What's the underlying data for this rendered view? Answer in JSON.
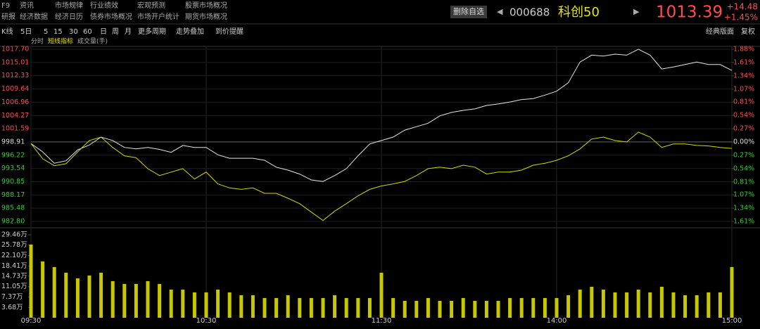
{
  "header": {
    "menu": [
      [
        "F9",
        "资讯",
        "市场规律",
        "行业绩效",
        "宏观预测",
        "股票市场概况"
      ],
      [
        "研报",
        "经济数据",
        "经济日历",
        "债券市场概况",
        "市场开户统计",
        "期货市场概况"
      ]
    ],
    "button": "删除自选",
    "code": "000688",
    "name": "科创50",
    "price": "1013.39",
    "change": "+14.48",
    "change_pct": "+1.45%"
  },
  "toolbar": {
    "left": [
      "K线",
      "5日",
      "5",
      "15",
      "30",
      "60",
      "日",
      "周",
      "月",
      "更多周期",
      "走势叠加",
      "到价提醒"
    ],
    "right": [
      "经典版面",
      "复权"
    ],
    "sub": [
      "分时",
      "短线指标",
      "成交量(手)"
    ]
  },
  "chart_data": {
    "type": "line",
    "x": [
      0,
      4,
      8,
      12,
      16,
      20,
      24,
      28,
      32,
      36,
      40,
      44,
      48,
      52,
      56,
      60,
      64,
      68,
      72,
      76,
      80,
      84,
      88,
      92,
      96,
      100,
      104,
      108,
      112,
      116,
      120,
      124,
      128,
      132,
      136,
      140,
      144,
      148,
      152,
      156,
      160,
      164,
      168,
      172,
      176,
      180,
      184,
      188,
      192,
      196,
      200,
      204,
      208,
      212,
      216,
      220,
      224,
      228,
      232,
      236,
      240
    ],
    "xlim": [
      0,
      240
    ],
    "xticks": [
      {
        "value": 0,
        "label": "09:30"
      },
      {
        "value": 60,
        "label": "10:30"
      },
      {
        "value": 120,
        "label": "11:30"
      },
      {
        "value": 180,
        "label": "14:00"
      },
      {
        "value": 240,
        "label": "15:00"
      }
    ],
    "series": [
      {
        "color": "#e6e6e6",
        "values": [
          998.6,
          996.9,
          994.6,
          995.1,
          997.3,
          998.3,
          999.9,
          999.2,
          997.8,
          997.5,
          997.8,
          997.4,
          996.8,
          998.2,
          997.8,
          997.8,
          996.3,
          995.6,
          995.6,
          995.6,
          995.2,
          993.8,
          993.2,
          992.4,
          991.2,
          990.9,
          992.1,
          993.5,
          996.1,
          998.5,
          999.2,
          999.9,
          1001.3,
          1002.0,
          1002.7,
          1004.2,
          1004.9,
          1005.3,
          1005.6,
          1006.3,
          1006.6,
          1007.0,
          1007.5,
          1007.7,
          1008.4,
          1009.2,
          1010.9,
          1015.1,
          1016.5,
          1016.3,
          1016.7,
          1016.5,
          1017.7,
          1016.5,
          1013.7,
          1014.1,
          1014.6,
          1015.1,
          1014.6,
          1014.6,
          1013.4
        ]
      },
      {
        "color": "#d8d800",
        "values": [
          998.6,
          995.5,
          994.1,
          994.5,
          996.9,
          999.2,
          999.9,
          997.8,
          996.1,
          995.7,
          993.5,
          992.1,
          992.8,
          993.5,
          991.4,
          992.8,
          990.4,
          989.6,
          989.3,
          989.6,
          988.5,
          988.5,
          987.5,
          986.4,
          984.7,
          983.0,
          984.9,
          986.4,
          988.0,
          989.3,
          990.0,
          990.4,
          990.9,
          992.1,
          993.5,
          993.8,
          993.5,
          994.2,
          993.8,
          992.4,
          992.8,
          992.8,
          993.2,
          994.2,
          994.6,
          995.2,
          996.1,
          997.5,
          999.5,
          999.9,
          999.2,
          998.9,
          1000.9,
          999.9,
          997.8,
          998.5,
          998.5,
          998.2,
          998.1,
          997.8,
          997.6
        ]
      }
    ],
    "ylim": [
      982.8,
      1017.7
    ],
    "yticks": [
      {
        "value": 1017.7,
        "label": "1017.70"
      },
      {
        "value": 1015.01,
        "label": "1015.01"
      },
      {
        "value": 1012.33,
        "label": "1012.33"
      },
      {
        "value": 1009.64,
        "label": "1009.64"
      },
      {
        "value": 1006.96,
        "label": "1006.96"
      },
      {
        "value": 1004.27,
        "label": "1004.27"
      },
      {
        "value": 1001.59,
        "label": "1001.59"
      },
      {
        "value": 998.91,
        "label": "998.91"
      },
      {
        "value": 996.22,
        "label": "996.22"
      },
      {
        "value": 993.54,
        "label": "993.54"
      },
      {
        "value": 990.85,
        "label": "990.85"
      },
      {
        "value": 988.17,
        "label": "988.17"
      },
      {
        "value": 985.48,
        "label": "985.48"
      },
      {
        "value": 982.8,
        "label": "982.80"
      }
    ],
    "y2lim": [
      -1.61,
      1.88
    ],
    "y2ticks": [
      {
        "value": 1.88,
        "label": "1.88%"
      },
      {
        "value": 1.61,
        "label": "1.61%"
      },
      {
        "value": 1.34,
        "label": "1.34%"
      },
      {
        "value": 1.07,
        "label": "1.07%"
      },
      {
        "value": 0.81,
        "label": "0.81%"
      },
      {
        "value": 0.54,
        "label": "0.54%"
      },
      {
        "value": 0.27,
        "label": "0.27%"
      },
      {
        "value": 0,
        "label": "0.00%"
      },
      {
        "value": -0.27,
        "label": "0.27%"
      },
      {
        "value": -0.54,
        "label": "0.54%"
      },
      {
        "value": -0.81,
        "label": "0.81%"
      },
      {
        "value": -1.07,
        "label": "1.07%"
      },
      {
        "value": -1.34,
        "label": "1.34%"
      },
      {
        "value": -1.61,
        "label": "1.61%"
      }
    ],
    "up_color": "#ff4d4d",
    "down_color": "#33cc33",
    "volume": {
      "color": "#c8c800",
      "values": [
        26,
        20,
        18,
        16,
        14,
        15,
        16,
        13,
        12,
        12,
        13,
        12,
        10,
        10,
        9,
        9,
        10,
        9,
        8,
        8,
        7,
        7,
        8,
        7,
        7,
        7,
        8,
        7,
        7,
        7,
        16,
        7,
        6,
        6,
        7,
        6,
        6,
        7,
        6,
        6,
        6,
        7,
        7,
        7,
        7,
        7,
        8,
        10,
        11,
        10,
        9,
        9,
        10,
        9,
        11,
        9,
        8,
        8,
        9,
        9,
        18
      ],
      "ylim": [
        0,
        29.46
      ],
      "yticks": [
        {
          "value": 29.46,
          "label": "29.46万"
        },
        {
          "value": 25.78,
          "label": "25.78万"
        },
        {
          "value": 22.1,
          "label": "22.10万"
        },
        {
          "value": 18.41,
          "label": "18.41万"
        },
        {
          "value": 14.73,
          "label": "14.73万"
        },
        {
          "value": 11.05,
          "label": "11.05万"
        },
        {
          "value": 7.37,
          "label": "7.37万"
        },
        {
          "value": 3.68,
          "label": "3.68万"
        }
      ]
    }
  }
}
